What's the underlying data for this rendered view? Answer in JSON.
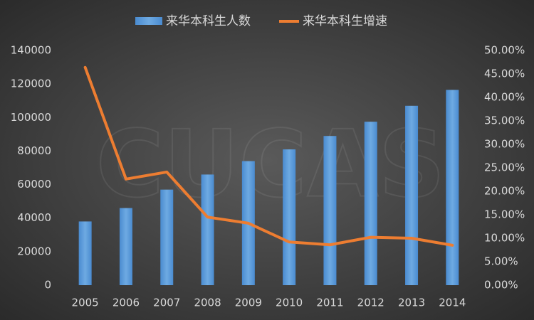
{
  "chart_data": {
    "type": "bar_line",
    "watermark": "CUCAS",
    "categories": [
      "2005",
      "2006",
      "2007",
      "2008",
      "2009",
      "2010",
      "2011",
      "2012",
      "2013",
      "2014"
    ],
    "series": [
      {
        "name": "来华本科生人数",
        "type": "bar",
        "color": "#5b9bd5",
        "values": [
          38000,
          46000,
          57000,
          66000,
          74000,
          81000,
          89000,
          97500,
          107000,
          116500
        ]
      },
      {
        "name": "来华本科生增速",
        "type": "line",
        "axis": "y2",
        "color": "#ed7d31",
        "values": [
          46.4,
          22.6,
          24.1,
          14.5,
          13.2,
          9.2,
          8.6,
          10.2,
          10.0,
          8.5
        ]
      }
    ],
    "ylim": [
      0,
      140000
    ],
    "yticks": [
      0,
      20000,
      40000,
      60000,
      80000,
      100000,
      120000,
      140000
    ],
    "y2lim": [
      0,
      50
    ],
    "y2ticks": [
      {
        "value": 0,
        "label": "0.00%"
      },
      {
        "value": 5,
        "label": "5.00%"
      },
      {
        "value": 10,
        "label": "10.00%"
      },
      {
        "value": 15,
        "label": "15.00%"
      },
      {
        "value": 20,
        "label": "20.00%"
      },
      {
        "value": 25,
        "label": "25.00%"
      },
      {
        "value": 30,
        "label": "30.00%"
      },
      {
        "value": 35,
        "label": "35.00%"
      },
      {
        "value": 40,
        "label": "40.00%"
      },
      {
        "value": 45,
        "label": "45.00%"
      },
      {
        "value": 50,
        "label": "50.00%"
      }
    ],
    "legend": "top"
  }
}
